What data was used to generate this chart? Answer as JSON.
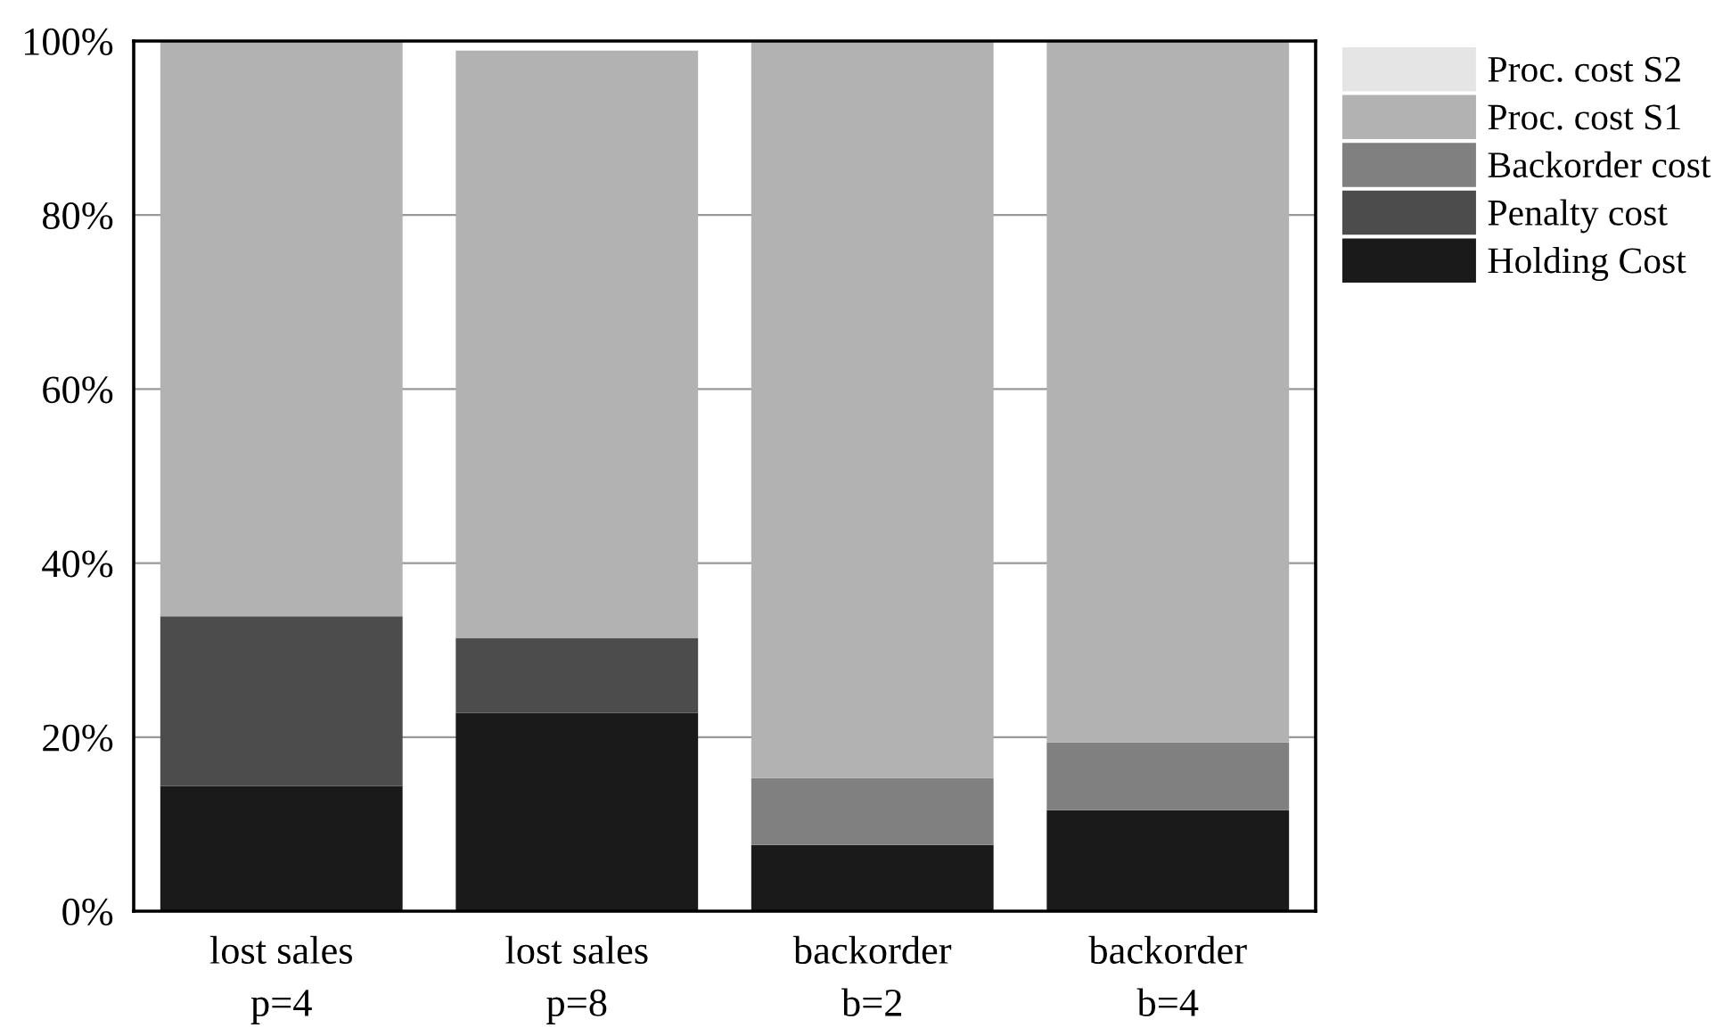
{
  "chart_data": {
    "type": "bar",
    "stacked": true,
    "categories": [
      "lost sales\np=4",
      "lost sales\np=8",
      "backorder\nb=2",
      "backorder\nb=4"
    ],
    "series": [
      {
        "name": "Holding Cost",
        "color": "#1a1a1a",
        "values": [
          14.4,
          22.8,
          7.6,
          11.6
        ]
      },
      {
        "name": "Penalty cost",
        "color": "#4c4c4c",
        "values": [
          19.5,
          8.6,
          0,
          0
        ]
      },
      {
        "name": "Backorder cost",
        "color": "#808080",
        "values": [
          0,
          0,
          7.7,
          7.8
        ]
      },
      {
        "name": "Proc. cost S1",
        "color": "#b2b2b2",
        "values": [
          66.1,
          67.5,
          84.7,
          80.6
        ]
      },
      {
        "name": "Proc. cost S2",
        "color": "#e5e5e5",
        "values": [
          0,
          null,
          0,
          0
        ]
      }
    ],
    "ylim": [
      0,
      100
    ],
    "yticks": [
      {
        "value": 0,
        "label": "0%"
      },
      {
        "value": 20,
        "label": "20%"
      },
      {
        "value": 40,
        "label": "40%"
      },
      {
        "value": 60,
        "label": "60%"
      },
      {
        "value": 80,
        "label": "80%"
      },
      {
        "value": 100,
        "label": "100%"
      }
    ],
    "grid": "y",
    "legend": "top right"
  }
}
